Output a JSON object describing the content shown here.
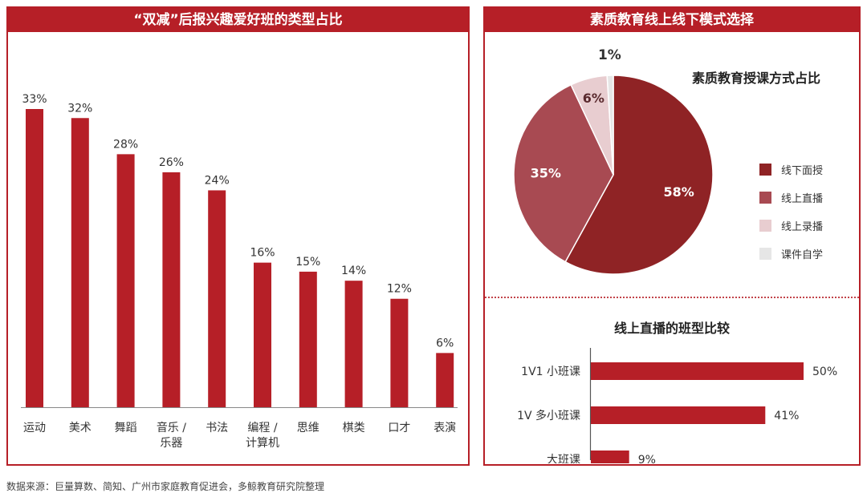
{
  "left_panel": {
    "title": "“双减”后报兴趣爱好班的类型占比"
  },
  "right_panel": {
    "title": "素质教育线上线下模式选择",
    "pie_title": "素质教育授课方式占比",
    "hbar_title": "线上直播的班型比较"
  },
  "footer": "数据来源：巨量算数、简知、广州市家庭教育促进会，多鲸教育研究院整理",
  "chart_data": [
    {
      "type": "bar",
      "title": "“双减”后报兴趣爱好班的类型占比",
      "categories": [
        "运动",
        "美术",
        "舞蹈",
        "音乐 / 乐器",
        "书法",
        "编程 / 计算机",
        "思维",
        "棋类",
        "口才",
        "表演"
      ],
      "category_lines": [
        [
          "运动"
        ],
        [
          "美术"
        ],
        [
          "舞蹈"
        ],
        [
          "音乐 /",
          "乐器"
        ],
        [
          "书法"
        ],
        [
          "编程 /",
          "计算机"
        ],
        [
          "思维"
        ],
        [
          "棋类"
        ],
        [
          "口才"
        ],
        [
          "表演"
        ]
      ],
      "values": [
        33,
        32,
        28,
        26,
        24,
        16,
        15,
        14,
        12,
        6
      ],
      "value_labels": [
        "33%",
        "32%",
        "28%",
        "26%",
        "24%",
        "16%",
        "15%",
        "14%",
        "12%",
        "6%"
      ],
      "unit": "%",
      "ylim": [
        0,
        36
      ],
      "color": "#b61f27",
      "grid": false
    },
    {
      "type": "pie",
      "title": "素质教育授课方式占比",
      "labels": [
        "线下面授",
        "线上直播",
        "线上录播",
        "课件自学"
      ],
      "values": [
        58,
        35,
        6,
        1
      ],
      "value_labels": [
        "58%",
        "35%",
        "6%",
        "1%"
      ],
      "colors": [
        "#8f2325",
        "#a84a52",
        "#e8cdd0",
        "#e6e6e6"
      ],
      "legend_position": "right"
    },
    {
      "type": "bar",
      "orientation": "horizontal",
      "title": "线上直播的班型比较",
      "categories": [
        "1V1 小班课",
        "1V 多小班课",
        "大班课"
      ],
      "values": [
        50,
        41,
        9
      ],
      "value_labels": [
        "50%",
        "41%",
        "9%"
      ],
      "xlim": [
        0,
        55
      ],
      "color": "#b61f27"
    }
  ]
}
